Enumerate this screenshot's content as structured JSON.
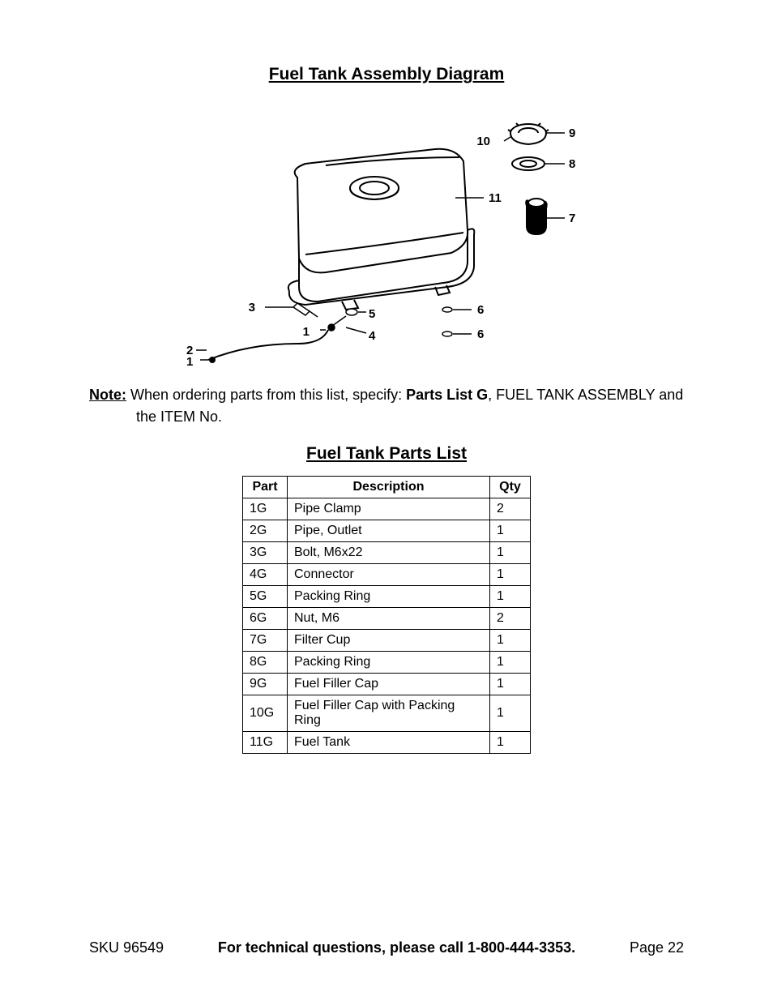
{
  "diagram_title": "Fuel Tank Assembly Diagram",
  "note": {
    "label": "Note:",
    "line1_prefix": "When ordering parts from this list, specify:  ",
    "bold_part": "Parts List G",
    "line1_suffix": ", FUEL TANK ASSEMBLY and",
    "line2": "the ITEM No."
  },
  "parts_title": "Fuel Tank Parts List",
  "table": {
    "headers": {
      "part": "Part",
      "desc": "Description",
      "qty": "Qty"
    },
    "rows": [
      {
        "part": "1G",
        "desc": "Pipe Clamp",
        "qty": "2"
      },
      {
        "part": "2G",
        "desc": "Pipe, Outlet",
        "qty": "1"
      },
      {
        "part": "3G",
        "desc": "Bolt, M6x22",
        "qty": "1"
      },
      {
        "part": "4G",
        "desc": "Connector",
        "qty": "1"
      },
      {
        "part": "5G",
        "desc": "Packing Ring",
        "qty": "1"
      },
      {
        "part": "6G",
        "desc": "Nut, M6",
        "qty": "2"
      },
      {
        "part": "7G",
        "desc": "Filter Cup",
        "qty": "1"
      },
      {
        "part": "8G",
        "desc": "Packing Ring",
        "qty": "1"
      },
      {
        "part": "9G",
        "desc": "Fuel Filler Cap",
        "qty": "1"
      },
      {
        "part": "10G",
        "desc": "Fuel Filler Cap with Packing Ring",
        "qty": "1"
      },
      {
        "part": "11G",
        "desc": "Fuel Tank",
        "qty": "1"
      }
    ]
  },
  "diagram_callouts": {
    "c1a": "1",
    "c1b": "1",
    "c2": "2",
    "c3": "3",
    "c4": "4",
    "c5": "5",
    "c6a": "6",
    "c6b": "6",
    "c7": "7",
    "c8": "8",
    "c9": "9",
    "c10": "10",
    "c11": "11"
  },
  "footer": {
    "sku": "SKU 96549",
    "center": "For technical questions, please call 1-800-444-3353.",
    "page": "Page 22"
  }
}
